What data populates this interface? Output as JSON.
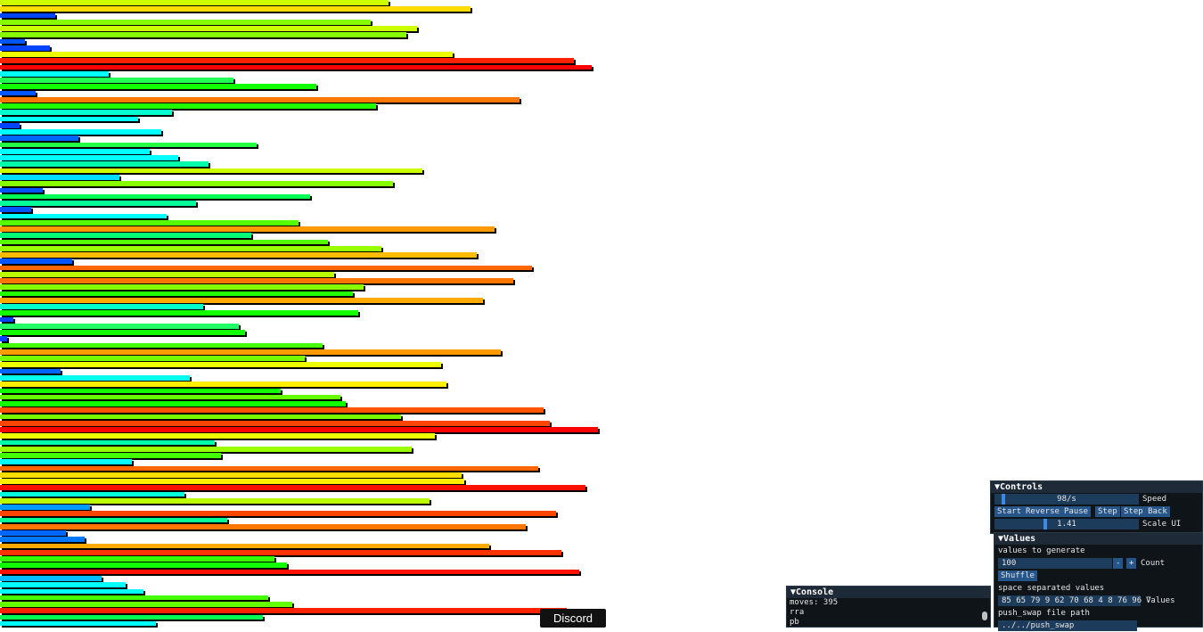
{
  "bars": [
    {
      "value": 436,
      "color": "#ccff00"
    },
    {
      "value": 528,
      "color": "#ffdd00"
    },
    {
      "value": 62,
      "color": "#0044ff"
    },
    {
      "value": 416,
      "color": "#88ff00"
    },
    {
      "value": 468,
      "color": "#ccff00"
    },
    {
      "value": 456,
      "color": "#88ff00"
    },
    {
      "value": 28,
      "color": "#0055ff"
    },
    {
      "value": 56,
      "color": "#0044ff"
    },
    {
      "value": 508,
      "color": "#eeff00"
    },
    {
      "value": 644,
      "color": "#ff2200"
    },
    {
      "value": 664,
      "color": "#ff0000"
    },
    {
      "value": 122,
      "color": "#00ffff"
    },
    {
      "value": 262,
      "color": "#22ff55"
    },
    {
      "value": 355,
      "color": "#11ff00"
    },
    {
      "value": 40,
      "color": "#0055ff"
    },
    {
      "value": 583,
      "color": "#ff7700"
    },
    {
      "value": 422,
      "color": "#22ff00"
    },
    {
      "value": 193,
      "color": "#00ffcc"
    },
    {
      "value": 155,
      "color": "#00ffff"
    },
    {
      "value": 22,
      "color": "#0044ff"
    },
    {
      "value": 181,
      "color": "#00ffff"
    },
    {
      "value": 88,
      "color": "#0066ff"
    },
    {
      "value": 288,
      "color": "#22ff44"
    },
    {
      "value": 168,
      "color": "#00ffff"
    },
    {
      "value": 200,
      "color": "#00ffff"
    },
    {
      "value": 234,
      "color": "#00ffaa"
    },
    {
      "value": 474,
      "color": "#ccff00"
    },
    {
      "value": 134,
      "color": "#00ddff"
    },
    {
      "value": 441,
      "color": "#88ff00"
    },
    {
      "value": 48,
      "color": "#0055ff"
    },
    {
      "value": 348,
      "color": "#00ff55"
    },
    {
      "value": 220,
      "color": "#00ff99"
    },
    {
      "value": 35,
      "color": "#0055ff"
    },
    {
      "value": 187,
      "color": "#00ffff"
    },
    {
      "value": 335,
      "color": "#55ff00"
    },
    {
      "value": 555,
      "color": "#ff9900"
    },
    {
      "value": 282,
      "color": "#00ff77"
    },
    {
      "value": 368,
      "color": "#55ff00"
    },
    {
      "value": 428,
      "color": "#99ff00"
    },
    {
      "value": 535,
      "color": "#ffbb00"
    },
    {
      "value": 81,
      "color": "#0055ff"
    },
    {
      "value": 597,
      "color": "#ff6600"
    },
    {
      "value": 375,
      "color": "#bbff00"
    },
    {
      "value": 576,
      "color": "#ff7700"
    },
    {
      "value": 408,
      "color": "#88ff00"
    },
    {
      "value": 396,
      "color": "#22ff00"
    },
    {
      "value": 542,
      "color": "#ffaa00"
    },
    {
      "value": 228,
      "color": "#00ffcc"
    },
    {
      "value": 402,
      "color": "#11ff00"
    },
    {
      "value": 15,
      "color": "#0044ff"
    },
    {
      "value": 268,
      "color": "#22ff66"
    },
    {
      "value": 275,
      "color": "#11ff00"
    },
    {
      "value": 8,
      "color": "#0044ff"
    },
    {
      "value": 362,
      "color": "#44ff00"
    },
    {
      "value": 562,
      "color": "#ff9900"
    },
    {
      "value": 342,
      "color": "#77ff00"
    },
    {
      "value": 495,
      "color": "#eeff00"
    },
    {
      "value": 68,
      "color": "#0066ff"
    },
    {
      "value": 213,
      "color": "#00ffee"
    },
    {
      "value": 501,
      "color": "#ffee00"
    },
    {
      "value": 315,
      "color": "#11ff00"
    },
    {
      "value": 382,
      "color": "#66ff00"
    },
    {
      "value": 388,
      "color": "#11ff00"
    },
    {
      "value": 610,
      "color": "#ff5500"
    },
    {
      "value": 450,
      "color": "#77ff00"
    },
    {
      "value": 617,
      "color": "#ff4400"
    },
    {
      "value": 671,
      "color": "#ff0000"
    },
    {
      "value": 488,
      "color": "#eeff00"
    },
    {
      "value": 241,
      "color": "#00ffaa"
    },
    {
      "value": 462,
      "color": "#99ff00"
    },
    {
      "value": 248,
      "color": "#44ff00"
    },
    {
      "value": 148,
      "color": "#00ffff"
    },
    {
      "value": 604,
      "color": "#ff6600"
    },
    {
      "value": 518,
      "color": "#ffdd00"
    },
    {
      "value": 521,
      "color": "#ffee00"
    },
    {
      "value": 657,
      "color": "#ff1100"
    },
    {
      "value": 207,
      "color": "#00ffdd"
    },
    {
      "value": 482,
      "color": "#bbff00"
    },
    {
      "value": 101,
      "color": "#0099ff"
    },
    {
      "value": 624,
      "color": "#ff4400"
    },
    {
      "value": 255,
      "color": "#00ff99"
    },
    {
      "value": 590,
      "color": "#ff7700"
    },
    {
      "value": 74,
      "color": "#0066ff"
    },
    {
      "value": 95,
      "color": "#0077ff"
    },
    {
      "value": 549,
      "color": "#ffaa00"
    },
    {
      "value": 630,
      "color": "#ff3300"
    },
    {
      "value": 308,
      "color": "#33ff00"
    },
    {
      "value": 322,
      "color": "#11ff00"
    },
    {
      "value": 650,
      "color": "#ff1100"
    },
    {
      "value": 114,
      "color": "#00bbff"
    },
    {
      "value": 141,
      "color": "#00ffff"
    },
    {
      "value": 161,
      "color": "#00ffff"
    },
    {
      "value": 301,
      "color": "#44ff00"
    },
    {
      "value": 328,
      "color": "#66ff00"
    },
    {
      "value": 636,
      "color": "#ff2200"
    },
    {
      "value": 295,
      "color": "#00ff55"
    },
    {
      "value": 175,
      "color": "#00ffff"
    }
  ],
  "controls_panel": {
    "title": "Controls",
    "speed_value": "98/s",
    "speed_fraction": 0.05,
    "speed_label": "Speed",
    "buttons": [
      "Start",
      "Reverse",
      "Pause",
      "Step",
      "Step Back"
    ],
    "scale_value": "1.41",
    "scale_fraction": 0.35,
    "scale_label": "Scale UI"
  },
  "values_panel": {
    "title": "Values",
    "values_to_generate_label": "values to generate",
    "count_value": "100",
    "minus_label": "-",
    "plus_label": "+",
    "count_label": "Count",
    "shuffle_label": "Shuffle",
    "space_separated_label": "space separated values",
    "values_text": "85 65 79 9 62 70 68 4 8 76 96 7",
    "values_field_label": "Values",
    "push_swap_label": "push_swap file path",
    "path_value": "../../push_swap"
  },
  "console_panel": {
    "title": "Console",
    "lines": [
      "moves: 395",
      "rra",
      "pb"
    ]
  },
  "discord_button": "Discord"
}
